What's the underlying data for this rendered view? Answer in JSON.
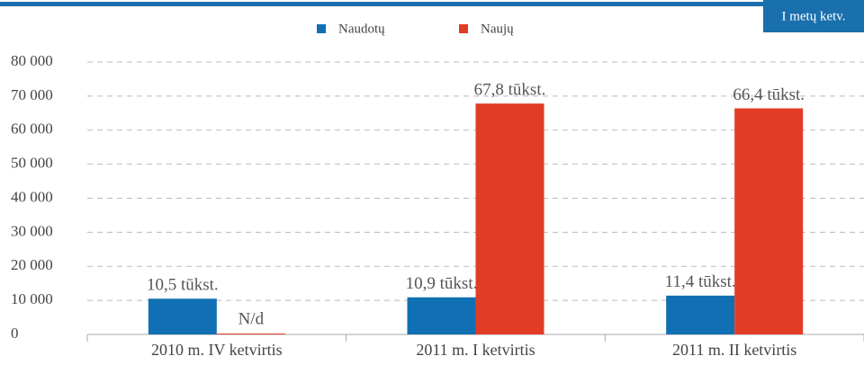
{
  "chart_data": {
    "type": "bar",
    "badge": "I metų ketv.",
    "categories": [
      "2010 m. IV ketvirtis",
      "2011 m. I ketvirtis",
      "2011 m. II ketvirtis"
    ],
    "series": [
      {
        "name": "Naudotų",
        "color": "#1170b3",
        "values": [
          10500,
          10900,
          11400
        ],
        "value_labels": [
          "10,5 tūkst.",
          "10,9 tūkst.",
          "11,4 tūkst."
        ]
      },
      {
        "name": "Naujų",
        "color": "#e23c24",
        "values": [
          null,
          67800,
          66400
        ],
        "value_labels": [
          "N/d",
          "67,8 tūkst.",
          "66,4 tūkst."
        ]
      }
    ],
    "ylim": [
      0,
      80000
    ],
    "yticks": [
      {
        "value": 0,
        "label": "0"
      },
      {
        "value": 10000,
        "label": "10 000"
      },
      {
        "value": 20000,
        "label": "20 000"
      },
      {
        "value": 30000,
        "label": "30 000"
      },
      {
        "value": 40000,
        "label": "40 000"
      },
      {
        "value": 50000,
        "label": "50 000"
      },
      {
        "value": 60000,
        "label": "60 000"
      },
      {
        "value": 70000,
        "label": "70 000"
      },
      {
        "value": 80000,
        "label": "80 000"
      }
    ],
    "grid": true
  }
}
